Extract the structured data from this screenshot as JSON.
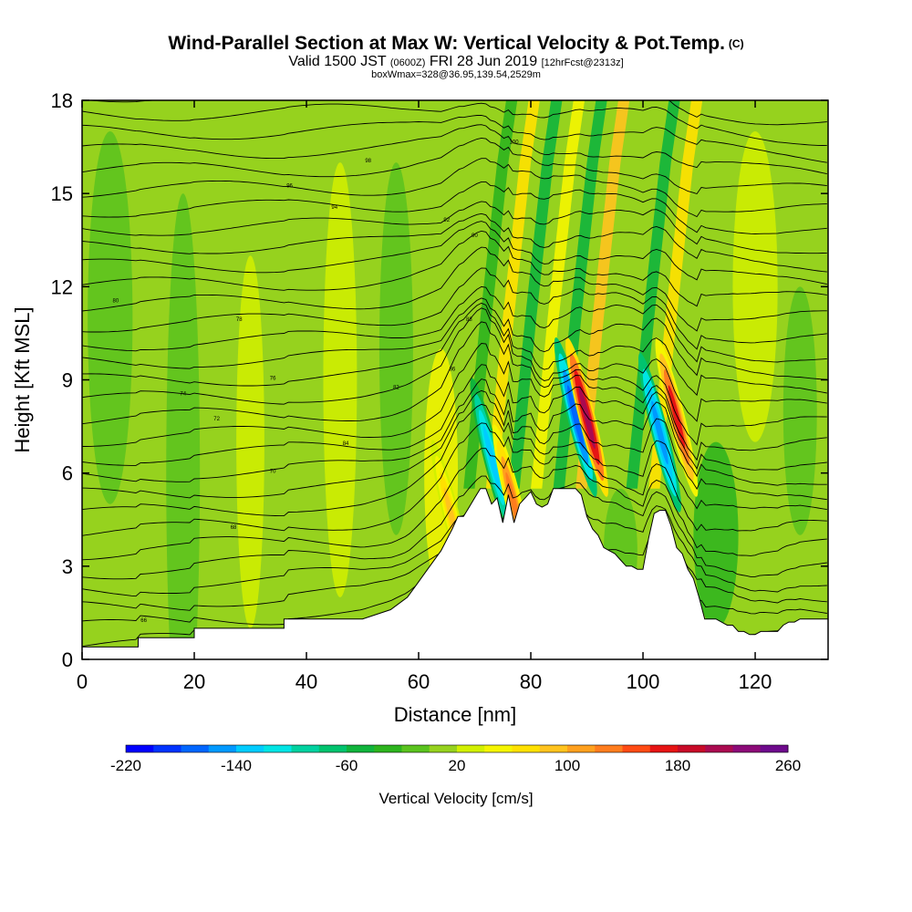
{
  "title": {
    "main": "Wind-Parallel Section at Max W: Vertical Velocity & Pot.Temp.",
    "corner": "(C)",
    "valid_prefix": "Valid 1500 JST",
    "valid_utc": "(0600Z)",
    "valid_date": "FRI 28 Jun 2019",
    "forecast": "[12hrFcst@2313z]",
    "box": "boxWmax=328@36.95,139.54,2529m"
  },
  "chart_data": {
    "type": "heatmap",
    "xlabel": "Distance [nm]",
    "ylabel": "Height [Kft MSL]",
    "xlim": [
      0,
      133
    ],
    "ylim": [
      0,
      18
    ],
    "xticks": [
      0,
      20,
      40,
      60,
      80,
      100,
      120
    ],
    "yticks": [
      0,
      3,
      6,
      9,
      12,
      15,
      18
    ],
    "colorbar": {
      "title": "Vertical Velocity [cm/s]",
      "min": -220,
      "max": 260,
      "step": 20,
      "labels": [
        -220,
        -140,
        -60,
        20,
        100,
        180,
        260
      ],
      "colors": [
        "#0000ff",
        "#0033ff",
        "#0066ff",
        "#0099ff",
        "#00ccff",
        "#00e5e5",
        "#00d2a0",
        "#00c36e",
        "#10b43c",
        "#2db41e",
        "#5ac31e",
        "#96d21e",
        "#d2f000",
        "#f5f500",
        "#ffe100",
        "#ffc31e",
        "#ffa01e",
        "#ff7d1e",
        "#ff4b14",
        "#e61414",
        "#c80a28",
        "#aa0a50",
        "#8c0a78",
        "#6e0a8c"
      ]
    },
    "terrain_profile": {
      "x": [
        0,
        10,
        10,
        20,
        20,
        36,
        36,
        50,
        55,
        58,
        60,
        62,
        64,
        66,
        67,
        68,
        69,
        70,
        71,
        72,
        73,
        74,
        75,
        76,
        77,
        78,
        79,
        80,
        81,
        82,
        83,
        84,
        85,
        86,
        87,
        88,
        89,
        90,
        91,
        92,
        93,
        94,
        95,
        96,
        97,
        98,
        99,
        100,
        101,
        102,
        103,
        104,
        105,
        106,
        107,
        108,
        109,
        110,
        111,
        112,
        113,
        114,
        115,
        116,
        117,
        118,
        119,
        120,
        121,
        122,
        123,
        124,
        125,
        126,
        127,
        128,
        133
      ],
      "y": [
        0.4,
        0.4,
        0.7,
        0.7,
        1.0,
        1.0,
        1.3,
        1.3,
        1.6,
        2.0,
        2.5,
        3.0,
        3.5,
        4.2,
        4.6,
        4.6,
        4.9,
        5.2,
        5.5,
        5.5,
        5.0,
        5.2,
        4.4,
        5.3,
        4.4,
        5.0,
        5.2,
        5.4,
        5.0,
        4.9,
        5.0,
        5.5,
        5.5,
        5.5,
        5.5,
        5.5,
        5.3,
        4.6,
        4.2,
        4.0,
        3.6,
        3.5,
        3.4,
        3.2,
        3.0,
        3.0,
        2.9,
        2.9,
        3.9,
        4.7,
        4.8,
        4.8,
        4.3,
        3.6,
        3.4,
        2.9,
        2.6,
        2.0,
        1.3,
        1.3,
        1.3,
        1.2,
        1.1,
        1.1,
        0.9,
        0.9,
        0.8,
        0.8,
        0.9,
        0.9,
        0.9,
        0.9,
        1.1,
        1.2,
        1.2,
        1.3,
        1.3
      ]
    },
    "updrafts": [
      {
        "x": 77,
        "y": 5.0,
        "value": 120
      },
      {
        "x": 90,
        "y": 7.8,
        "value": 200
      },
      {
        "x": 106,
        "y": 7.8,
        "value": 160
      },
      {
        "x": 66,
        "y": 4.5,
        "value": 80
      }
    ],
    "downdrafts": [
      {
        "x": 73,
        "y": 6.5,
        "value": -140
      },
      {
        "x": 88,
        "y": 7.8,
        "value": -180
      },
      {
        "x": 103,
        "y": 7.3,
        "value": -160
      }
    ],
    "isentrope_labels": [
      "66",
      "68",
      "70",
      "72",
      "74",
      "76",
      "78",
      "80",
      "82",
      "84",
      "86",
      "88",
      "90",
      "92",
      "94",
      "96",
      "98",
      "100"
    ]
  }
}
